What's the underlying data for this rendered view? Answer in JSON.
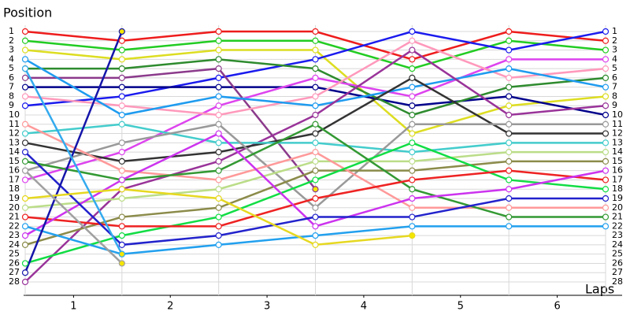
{
  "chart_data": {
    "type": "line",
    "title": "Position",
    "x_label": "Laps",
    "x": [
      0,
      1,
      2,
      3,
      4,
      5,
      6
    ],
    "xlim": [
      0,
      6
    ],
    "xticks": [
      {
        "value": 0.5,
        "label": "1"
      },
      {
        "value": 1.5,
        "label": "2"
      },
      {
        "value": 2.5,
        "label": "3"
      },
      {
        "value": 3.5,
        "label": "4"
      },
      {
        "value": 4.5,
        "label": "5"
      },
      {
        "value": 5.5,
        "label": "6"
      }
    ],
    "ylim": [
      1,
      28
    ],
    "y_reversed": true,
    "yticks": [
      1,
      2,
      3,
      4,
      5,
      6,
      7,
      8,
      9,
      10,
      11,
      12,
      13,
      14,
      15,
      16,
      17,
      18,
      19,
      20,
      21,
      22,
      23,
      24,
      25,
      26,
      27,
      28
    ],
    "grid": true,
    "series": [
      {
        "color": "#ee1c1c",
        "values": [
          1,
          2,
          1,
          1,
          4,
          1,
          2
        ]
      },
      {
        "color": "#22cc22",
        "values": [
          2,
          3,
          2,
          2,
          5,
          2,
          3
        ]
      },
      {
        "color": "#dddd22",
        "values": [
          3,
          4,
          3,
          3,
          12,
          9,
          8
        ]
      },
      {
        "color": "#1a1aee",
        "values": [
          9,
          8,
          6,
          4,
          1,
          3,
          1
        ]
      },
      {
        "color": "#00008b",
        "values": [
          7,
          7,
          7,
          7,
          9,
          8,
          10
        ]
      },
      {
        "color": "#2e8b2e",
        "values": [
          5,
          5,
          4,
          5,
          10,
          7,
          6
        ]
      },
      {
        "color": "#8b3a8b",
        "values": [
          6,
          6,
          5,
          18,
          null,
          null,
          null
        ]
      },
      {
        "color": "#dd44ee",
        "values": [
          17,
          14,
          9,
          6,
          8,
          4,
          4
        ]
      },
      {
        "color": "#ff99bb",
        "values": [
          8,
          9,
          10,
          8,
          2,
          6,
          5
        ]
      },
      {
        "color": "#1e9bef",
        "values": [
          4,
          10,
          8,
          9,
          7,
          5,
          7
        ]
      },
      {
        "color": "#993399",
        "values": [
          28,
          18,
          15,
          10,
          3,
          10,
          9
        ]
      },
      {
        "color": "#333333",
        "values": [
          13,
          15,
          14,
          12,
          6,
          12,
          12
        ]
      },
      {
        "color": "#44cccc",
        "values": [
          12,
          11,
          13,
          13,
          14,
          13,
          13
        ]
      },
      {
        "color": "#999999",
        "values": [
          16,
          13,
          11,
          20,
          11,
          11,
          11
        ]
      },
      {
        "color": "#bbdd88",
        "values": [
          20,
          19,
          18,
          15,
          15,
          14,
          14
        ]
      },
      {
        "color": "#8b8b4a",
        "values": [
          24,
          21,
          20,
          16,
          16,
          15,
          15
        ]
      },
      {
        "color": "#ff9999",
        "values": [
          11,
          16,
          17,
          14,
          20,
          20,
          20
        ]
      },
      {
        "color": "#11dd44",
        "values": [
          26,
          23,
          21,
          17,
          13,
          17,
          18
        ]
      },
      {
        "color": "#339933",
        "values": [
          15,
          17,
          16,
          11,
          18,
          21,
          21
        ]
      },
      {
        "color": "#ee2222",
        "values": [
          21,
          22,
          22,
          19,
          17,
          16,
          17
        ]
      },
      {
        "color": "#cc33ee",
        "values": [
          23,
          17,
          12,
          22,
          19,
          18,
          16
        ]
      },
      {
        "color": "#2222cc",
        "values": [
          14,
          24,
          23,
          21,
          21,
          19,
          19
        ]
      },
      {
        "color": "#22a0ee",
        "values": [
          22,
          25,
          24,
          23,
          22,
          22,
          22
        ]
      },
      {
        "color": "#1515aa",
        "values": [
          27,
          1,
          null,
          null,
          null,
          null,
          null
        ]
      },
      {
        "color": "#e6d820",
        "values": [
          19,
          18,
          19,
          24,
          23,
          null,
          null
        ]
      },
      {
        "color": "#a0a0a0",
        "values": [
          16,
          26,
          null,
          null,
          null,
          null,
          null
        ]
      },
      {
        "color": "#33aaee",
        "values": [
          5,
          25,
          null,
          null,
          null,
          null,
          null
        ]
      }
    ]
  }
}
